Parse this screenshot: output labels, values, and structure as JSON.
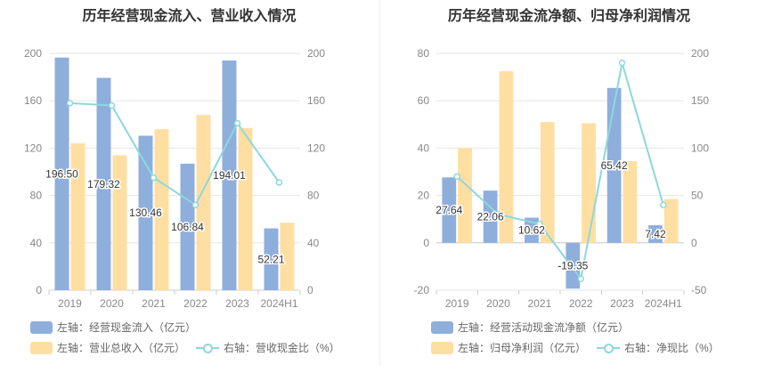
{
  "charts": [
    {
      "title": "历年经营现金流入、营业收入情况",
      "legend": [
        {
          "label": "左轴：经营现金流入（亿元）",
          "kind": "bar",
          "color": "#8eaedc"
        },
        {
          "label": "左轴：营业总收入（亿元）",
          "kind": "bar",
          "color": "#ffdea2"
        },
        {
          "label": "右轴：营收现金比（%）",
          "kind": "line",
          "color": "#8dd8dc"
        }
      ]
    },
    {
      "title": "历年经营现金流净额、归母净利润情况",
      "legend": [
        {
          "label": "左轴：经营活动现金流净额（亿元）",
          "kind": "bar",
          "color": "#8eaedc"
        },
        {
          "label": "左轴：归母净利润（亿元）",
          "kind": "bar",
          "color": "#ffdea2"
        },
        {
          "label": "右轴：净现比（%）",
          "kind": "line",
          "color": "#8dd8dc"
        }
      ]
    }
  ],
  "chart_data": [
    {
      "type": "bar",
      "title": "历年经营现金流入、营业收入情况",
      "categories": [
        "2019",
        "2020",
        "2021",
        "2022",
        "2023",
        "2024H1"
      ],
      "y_left": {
        "range": [
          0,
          200
        ],
        "ticks": [
          0,
          40,
          80,
          120,
          160,
          200
        ]
      },
      "y_right": {
        "range": [
          0,
          200
        ],
        "ticks": [
          0,
          40,
          80,
          120,
          160,
          200
        ]
      },
      "grid": true,
      "legend_position": "bottom-left",
      "series": [
        {
          "name": "左轴：经营现金流入（亿元）",
          "axis": "left",
          "kind": "bar",
          "color": "#8eaedc",
          "values": [
            196.5,
            179.32,
            130.46,
            106.84,
            194.01,
            52.21
          ],
          "labels": [
            "196.50",
            "179.32",
            "130.46",
            "106.84",
            "194.01",
            "52.21"
          ]
        },
        {
          "name": "左轴：营业总收入（亿元）",
          "axis": "left",
          "kind": "bar",
          "color": "#ffdea2",
          "values": [
            124,
            114,
            136,
            148,
            137,
            57
          ]
        },
        {
          "name": "右轴：营收现金比（%）",
          "axis": "right",
          "kind": "line",
          "color": "#8dd8dc",
          "values": [
            158,
            156,
            95,
            72,
            141,
            91
          ]
        }
      ]
    },
    {
      "type": "bar",
      "title": "历年经营现金流净额、归母净利润情况",
      "categories": [
        "2019",
        "2020",
        "2021",
        "2022",
        "2023",
        "2024H1"
      ],
      "y_left": {
        "range": [
          -20,
          80
        ],
        "ticks": [
          -20,
          0,
          20,
          40,
          60,
          80
        ]
      },
      "y_right": {
        "range": [
          -50,
          200
        ],
        "ticks": [
          -50,
          0,
          50,
          100,
          150,
          200
        ]
      },
      "grid": true,
      "legend_position": "bottom-left",
      "series": [
        {
          "name": "左轴：经营活动现金流净额（亿元）",
          "axis": "left",
          "kind": "bar",
          "color": "#8eaedc",
          "values": [
            27.64,
            22.06,
            10.62,
            -19.35,
            65.42,
            7.42
          ],
          "labels": [
            "27.64",
            "22.06",
            "10.62",
            "-19.35",
            "65.42",
            "7.42"
          ]
        },
        {
          "name": "左轴：归母净利润（亿元）",
          "axis": "left",
          "kind": "bar",
          "color": "#ffdea2",
          "values": [
            40,
            72.5,
            51,
            50.5,
            34.5,
            18.5
          ]
        },
        {
          "name": "右轴：净现比（%）",
          "axis": "right",
          "kind": "line",
          "color": "#8dd8dc",
          "values": [
            70,
            30,
            20,
            -38,
            190,
            40
          ]
        }
      ]
    }
  ]
}
